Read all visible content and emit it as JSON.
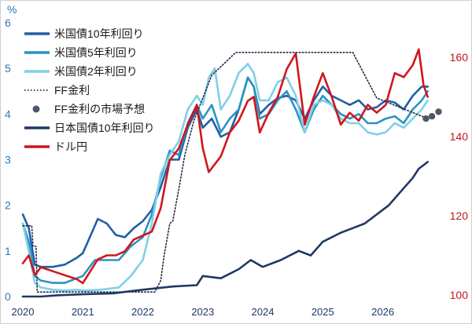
{
  "chart_data": {
    "type": "line",
    "left_axis": {
      "unit": "%",
      "ticks": [
        "0",
        "1",
        "2",
        "3",
        "4",
        "5",
        "6"
      ],
      "range": [
        0,
        6
      ],
      "color": "#2e78b7"
    },
    "right_axis": {
      "ticks": [
        "100",
        "120",
        "140",
        "160"
      ],
      "range": [
        100,
        170
      ],
      "color": "#c0181f"
    },
    "x_axis": {
      "ticks": [
        "2020",
        "2021",
        "2022",
        "2023",
        "2024",
        "2025",
        "2026"
      ],
      "range": [
        2020.0,
        2026.95
      ]
    },
    "grid": false,
    "legend": {
      "placement": "top-left",
      "items": [
        {
          "label": "米国債10年利回り",
          "style": "line",
          "color": "#1f5fa5"
        },
        {
          "label": "米国債5年利回り",
          "style": "line",
          "color": "#2a93c4"
        },
        {
          "label": "米国債2年利回り",
          "style": "line",
          "color": "#7fd0e6"
        },
        {
          "label": "FF金利",
          "style": "dotted",
          "color": "#1f2a44"
        },
        {
          "label": "FF金利の市場予想",
          "style": "marker",
          "color": "#4d5866"
        },
        {
          "label": "日本国債10年利回り",
          "style": "line",
          "color": "#1f3864"
        },
        {
          "label": "ドル円",
          "style": "line",
          "color": "#d0161c"
        }
      ]
    },
    "series": [
      {
        "name": "米国債10年利回り",
        "axis": "left",
        "color": "#1f5fa5",
        "style": "line",
        "x": [
          2020.0,
          2020.1,
          2020.2,
          2020.3,
          2020.5,
          2020.7,
          2020.9,
          2021.0,
          2021.15,
          2021.25,
          2021.4,
          2021.55,
          2021.7,
          2021.85,
          2022.0,
          2022.15,
          2022.3,
          2022.45,
          2022.6,
          2022.75,
          2022.9,
          2023.0,
          2023.15,
          2023.3,
          2023.45,
          2023.6,
          2023.75,
          2023.85,
          2023.95,
          2024.1,
          2024.25,
          2024.4,
          2024.55,
          2024.7,
          2024.85,
          2025.0,
          2025.15,
          2025.3,
          2025.45,
          2025.6,
          2025.75,
          2025.9,
          2026.05,
          2026.2,
          2026.35,
          2026.5,
          2026.65,
          2026.75
        ],
        "y": [
          1.8,
          1.5,
          0.7,
          0.65,
          0.65,
          0.7,
          0.85,
          0.95,
          1.4,
          1.7,
          1.6,
          1.35,
          1.3,
          1.5,
          1.65,
          1.9,
          2.4,
          3.0,
          3.0,
          3.7,
          4.1,
          3.7,
          3.9,
          3.5,
          3.6,
          4.1,
          4.8,
          4.6,
          4.0,
          4.2,
          4.35,
          4.4,
          4.3,
          3.9,
          4.3,
          4.6,
          4.4,
          4.3,
          4.2,
          4.3,
          4.1,
          4.15,
          4.3,
          4.25,
          4.1,
          4.4,
          4.6,
          4.6
        ]
      },
      {
        "name": "米国債5年利回り",
        "axis": "left",
        "color": "#2a93c4",
        "style": "line",
        "x": [
          2020.0,
          2020.1,
          2020.2,
          2020.3,
          2020.5,
          2020.7,
          2020.9,
          2021.0,
          2021.2,
          2021.4,
          2021.6,
          2021.8,
          2022.0,
          2022.15,
          2022.3,
          2022.45,
          2022.6,
          2022.75,
          2022.9,
          2023.0,
          2023.15,
          2023.3,
          2023.45,
          2023.6,
          2023.75,
          2023.85,
          2023.95,
          2024.1,
          2024.25,
          2024.4,
          2024.55,
          2024.7,
          2024.85,
          2025.0,
          2025.15,
          2025.3,
          2025.45,
          2025.6,
          2025.75,
          2025.9,
          2026.05,
          2026.2,
          2026.35,
          2026.5,
          2026.65,
          2026.75
        ],
        "y": [
          1.6,
          1.2,
          0.45,
          0.35,
          0.3,
          0.3,
          0.4,
          0.45,
          0.8,
          0.8,
          0.8,
          1.1,
          1.3,
          1.8,
          2.6,
          3.2,
          3.1,
          3.8,
          4.2,
          3.9,
          4.2,
          3.6,
          3.9,
          4.1,
          4.8,
          4.6,
          3.9,
          4.0,
          4.3,
          4.5,
          4.1,
          3.6,
          4.1,
          4.4,
          4.2,
          4.0,
          3.9,
          4.0,
          3.8,
          3.8,
          3.9,
          3.95,
          3.8,
          4.1,
          4.3,
          4.5
        ]
      },
      {
        "name": "米国債2年利回り",
        "axis": "left",
        "color": "#7fd0e6",
        "style": "line",
        "x": [
          2020.0,
          2020.1,
          2020.2,
          2020.3,
          2020.5,
          2020.7,
          2020.9,
          2021.0,
          2021.3,
          2021.6,
          2021.8,
          2022.0,
          2022.15,
          2022.3,
          2022.45,
          2022.6,
          2022.75,
          2022.9,
          2023.0,
          2023.1,
          2023.2,
          2023.3,
          2023.45,
          2023.6,
          2023.75,
          2023.85,
          2023.95,
          2024.1,
          2024.25,
          2024.4,
          2024.55,
          2024.7,
          2024.85,
          2025.0,
          2025.15,
          2025.3,
          2025.45,
          2025.6,
          2025.75,
          2025.9,
          2026.05,
          2026.2,
          2026.35,
          2026.5,
          2026.65,
          2026.75
        ],
        "y": [
          1.6,
          1.0,
          0.3,
          0.2,
          0.15,
          0.13,
          0.15,
          0.13,
          0.15,
          0.2,
          0.45,
          0.8,
          1.6,
          2.7,
          3.1,
          3.4,
          4.1,
          4.4,
          4.2,
          4.8,
          5.0,
          4.1,
          4.4,
          4.9,
          5.1,
          4.9,
          4.3,
          4.3,
          4.7,
          4.8,
          4.4,
          3.6,
          4.2,
          4.3,
          4.2,
          3.9,
          3.8,
          3.8,
          3.6,
          3.55,
          3.6,
          3.8,
          3.7,
          3.9,
          4.1,
          4.3
        ]
      },
      {
        "name": "FF金利",
        "axis": "left",
        "color": "#1f2a44",
        "style": "dotted",
        "x": [
          2020.0,
          2020.15,
          2020.17,
          2020.22,
          2020.24,
          2022.2,
          2022.3,
          2022.35,
          2022.45,
          2022.5,
          2022.6,
          2022.7,
          2022.85,
          2023.0,
          2023.15,
          2023.35,
          2023.55,
          2025.5,
          2025.7,
          2025.9,
          2026.75
        ],
        "y": [
          1.55,
          1.55,
          1.1,
          1.1,
          0.1,
          0.1,
          0.35,
          0.85,
          1.6,
          1.65,
          2.35,
          3.1,
          3.85,
          4.35,
          4.85,
          5.1,
          5.35,
          5.35,
          4.85,
          4.35,
          3.9
        ]
      },
      {
        "name": "日本国債10年利回り",
        "axis": "left",
        "color": "#1f3864",
        "style": "line",
        "x": [
          2020.0,
          2020.3,
          2020.6,
          2021.0,
          2021.5,
          2022.0,
          2022.5,
          2022.9,
          2023.0,
          2023.3,
          2023.6,
          2023.8,
          2024.0,
          2024.3,
          2024.6,
          2024.8,
          2025.0,
          2025.3,
          2025.5,
          2025.7,
          2025.9,
          2026.1,
          2026.3,
          2026.5,
          2026.6,
          2026.75
        ],
        "y": [
          0.0,
          0.0,
          0.03,
          0.05,
          0.07,
          0.15,
          0.22,
          0.25,
          0.45,
          0.4,
          0.6,
          0.8,
          0.65,
          0.8,
          1.0,
          0.9,
          1.2,
          1.4,
          1.5,
          1.6,
          1.8,
          2.0,
          2.3,
          2.6,
          2.8,
          2.95
        ]
      },
      {
        "name": "ドル円",
        "axis": "right",
        "color": "#d0161c",
        "style": "line",
        "x": [
          2020.0,
          2020.1,
          2020.2,
          2020.3,
          2020.5,
          2020.7,
          2020.9,
          2021.0,
          2021.25,
          2021.4,
          2021.55,
          2021.7,
          2021.85,
          2022.0,
          2022.15,
          2022.3,
          2022.45,
          2022.6,
          2022.75,
          2022.9,
          2023.0,
          2023.1,
          2023.3,
          2023.45,
          2023.6,
          2023.75,
          2023.85,
          2023.95,
          2024.1,
          2024.25,
          2024.4,
          2024.55,
          2024.6,
          2024.7,
          2024.85,
          2025.0,
          2025.15,
          2025.3,
          2025.45,
          2025.6,
          2025.75,
          2025.9,
          2026.05,
          2026.2,
          2026.35,
          2026.5,
          2026.6,
          2026.68,
          2026.75
        ],
        "y": [
          108,
          110,
          105,
          107,
          106,
          105,
          104,
          103,
          109,
          110,
          110,
          111,
          114,
          115,
          116,
          122,
          134,
          137,
          143,
          148,
          137,
          131,
          135,
          141,
          144,
          149,
          150,
          141,
          146,
          150,
          157,
          161,
          155,
          143,
          150,
          156,
          150,
          143,
          146,
          144,
          148,
          146,
          148,
          156,
          155,
          158,
          162,
          153,
          150
        ]
      }
    ],
    "forecast_points": {
      "name": "FF金利の市場予想",
      "axis": "left",
      "color": "#4d5866",
      "x": [
        2026.72,
        2026.82,
        2026.93
      ],
      "y": [
        3.9,
        3.95,
        4.05
      ]
    }
  }
}
